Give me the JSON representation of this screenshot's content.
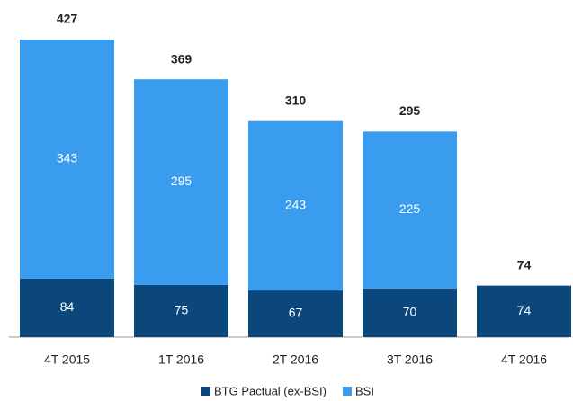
{
  "chart_data": {
    "type": "stacked_bar",
    "categories": [
      "4T 2015",
      "1T 2016",
      "2T 2016",
      "3T 2016",
      "4T 2016"
    ],
    "series": [
      {
        "name": "BTG Pactual (ex-BSI)",
        "color": "#0b477b",
        "values": [
          84,
          75,
          67,
          70,
          74
        ]
      },
      {
        "name": "BSI",
        "color": "#3a9cee",
        "values": [
          343,
          295,
          243,
          225,
          0
        ],
        "value_labels": [
          "343",
          "295",
          "243",
          "225",
          "-"
        ]
      }
    ],
    "totals": [
      427,
      369,
      310,
      295,
      74
    ],
    "legend": "bottom"
  }
}
